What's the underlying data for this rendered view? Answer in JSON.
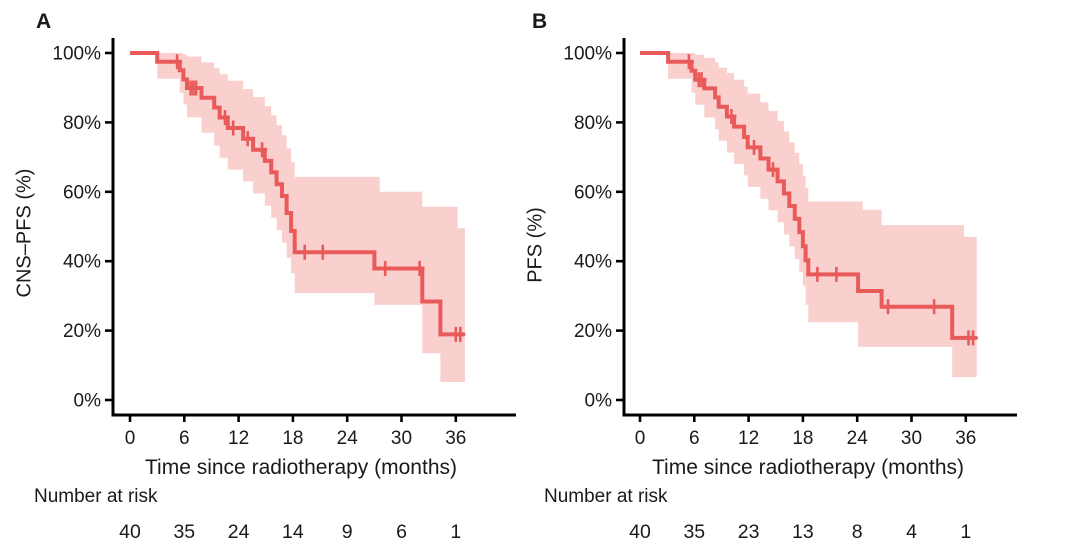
{
  "page": {
    "background": "#ffffff"
  },
  "chart_data": [
    {
      "type": "line",
      "subtype": "kaplan-meier-step-curve-with-confidence-band",
      "panel": "A",
      "ylabel": "CNS–PFS (%)",
      "xlabel": "Time since radiotherapy (months)",
      "risk_label": "Number at risk",
      "x_ticks": [
        0,
        6,
        12,
        18,
        24,
        30,
        36
      ],
      "y_ticks": [
        {
          "value": 100,
          "label": "100%"
        },
        {
          "value": 80,
          "label": "80%"
        },
        {
          "value": 60,
          "label": "60%"
        },
        {
          "value": 40,
          "label": "40%"
        },
        {
          "value": 20,
          "label": "20%"
        },
        {
          "value": 0,
          "label": "0%"
        }
      ],
      "xlim": [
        0,
        39
      ],
      "ylim": [
        0,
        100
      ],
      "grid": false,
      "legend": "none",
      "line_color": "#e95a5a",
      "band_color": "#fad0ce",
      "curve_start": [
        0,
        100
      ],
      "curve_end_time": 37.0,
      "survival_steps": [
        [
          3.0,
          97.5
        ],
        [
          5.5,
          95.0
        ],
        [
          5.9,
          92.4
        ],
        [
          6.3,
          89.9
        ],
        [
          7.9,
          87.1
        ],
        [
          9.3,
          84.3
        ],
        [
          9.9,
          81.4
        ],
        [
          10.8,
          78.4
        ],
        [
          12.5,
          75.3
        ],
        [
          13.6,
          72.1
        ],
        [
          14.9,
          68.9
        ],
        [
          15.6,
          65.6
        ],
        [
          16.2,
          62.2
        ],
        [
          16.8,
          58.8
        ],
        [
          17.3,
          53.9
        ],
        [
          17.8,
          48.7
        ],
        [
          18.2,
          42.6
        ],
        [
          27.0,
          37.9
        ],
        [
          32.3,
          28.4
        ],
        [
          34.3,
          18.9
        ]
      ],
      "censor_marks": [
        [
          5.2,
          97.5
        ],
        [
          6.7,
          89.9
        ],
        [
          7.0,
          89.9
        ],
        [
          7.3,
          89.9
        ],
        [
          10.5,
          81.4
        ],
        [
          11.4,
          78.4
        ],
        [
          13.0,
          75.3
        ],
        [
          14.6,
          72.1
        ],
        [
          19.3,
          42.6
        ],
        [
          21.3,
          42.6
        ],
        [
          28.2,
          37.9
        ],
        [
          32.0,
          37.9
        ],
        [
          36.0,
          18.9
        ],
        [
          36.5,
          18.9
        ]
      ],
      "band_upper": [
        [
          3.0,
          100
        ],
        [
          5.9,
          99.6
        ],
        [
          6.3,
          99.0
        ],
        [
          7.9,
          97.3
        ],
        [
          9.3,
          95.6
        ],
        [
          9.9,
          93.9
        ],
        [
          10.8,
          92.0
        ],
        [
          12.5,
          89.6
        ],
        [
          13.6,
          87.3
        ],
        [
          14.9,
          84.7
        ],
        [
          15.6,
          82.0
        ],
        [
          16.2,
          79.2
        ],
        [
          16.8,
          76.3
        ],
        [
          17.3,
          72.5
        ],
        [
          17.8,
          68.5
        ],
        [
          18.2,
          64.3
        ],
        [
          27.6,
          60.0
        ],
        [
          32.3,
          55.7
        ],
        [
          36.2,
          49.5
        ]
      ],
      "band_lower": [
        [
          3.0,
          92.6
        ],
        [
          5.5,
          88.5
        ],
        [
          5.9,
          85.2
        ],
        [
          6.3,
          81.5
        ],
        [
          7.9,
          77.0
        ],
        [
          9.3,
          73.3
        ],
        [
          9.9,
          69.8
        ],
        [
          10.8,
          66.4
        ],
        [
          12.5,
          63.0
        ],
        [
          13.6,
          59.5
        ],
        [
          14.9,
          56.0
        ],
        [
          15.6,
          52.5
        ],
        [
          16.2,
          49.0
        ],
        [
          16.8,
          45.4
        ],
        [
          17.3,
          41.0
        ],
        [
          17.8,
          36.5
        ],
        [
          18.2,
          30.8
        ],
        [
          27.0,
          27.4
        ],
        [
          32.3,
          13.5
        ],
        [
          34.3,
          5.2
        ]
      ],
      "risk_counts": [
        40,
        35,
        24,
        14,
        9,
        6,
        1
      ]
    },
    {
      "type": "line",
      "subtype": "kaplan-meier-step-curve-with-confidence-band",
      "panel": "B",
      "ylabel": "PFS (%)",
      "xlabel": "Time since radiotherapy (months)",
      "risk_label": "Number at risk",
      "x_ticks": [
        0,
        6,
        12,
        18,
        24,
        30,
        36
      ],
      "y_ticks": [
        {
          "value": 100,
          "label": "100%"
        },
        {
          "value": 80,
          "label": "80%"
        },
        {
          "value": 60,
          "label": "60%"
        },
        {
          "value": 40,
          "label": "40%"
        },
        {
          "value": 20,
          "label": "20%"
        },
        {
          "value": 0,
          "label": "0%"
        }
      ],
      "xlim": [
        0,
        39
      ],
      "ylim": [
        0,
        100
      ],
      "grid": false,
      "legend": "none",
      "line_color": "#e95a5a",
      "band_color": "#fad0ce",
      "curve_start": [
        0,
        100
      ],
      "curve_end_time": 37.2,
      "survival_steps": [
        [
          3.1,
          97.5
        ],
        [
          5.7,
          94.9
        ],
        [
          6.1,
          92.3
        ],
        [
          7.1,
          89.8
        ],
        [
          8.3,
          87.2
        ],
        [
          8.7,
          84.5
        ],
        [
          9.6,
          81.7
        ],
        [
          10.4,
          78.8
        ],
        [
          11.5,
          75.8
        ],
        [
          11.9,
          72.8
        ],
        [
          13.3,
          69.6
        ],
        [
          14.2,
          66.4
        ],
        [
          15.2,
          63.0
        ],
        [
          15.9,
          59.5
        ],
        [
          16.5,
          55.9
        ],
        [
          17.1,
          52.2
        ],
        [
          17.6,
          48.4
        ],
        [
          18.0,
          44.3
        ],
        [
          18.3,
          40.3
        ],
        [
          18.6,
          36.2
        ],
        [
          24.1,
          31.4
        ],
        [
          26.7,
          26.9
        ],
        [
          34.5,
          17.9
        ]
      ],
      "censor_marks": [
        [
          5.4,
          97.5
        ],
        [
          6.5,
          92.3
        ],
        [
          6.8,
          92.3
        ],
        [
          10.1,
          81.7
        ],
        [
          12.6,
          72.8
        ],
        [
          14.7,
          66.4
        ],
        [
          19.6,
          36.2
        ],
        [
          21.7,
          36.2
        ],
        [
          27.4,
          26.9
        ],
        [
          32.5,
          26.9
        ],
        [
          36.3,
          17.9
        ],
        [
          36.8,
          17.9
        ]
      ],
      "band_upper": [
        [
          3.1,
          100
        ],
        [
          6.1,
          99.5
        ],
        [
          7.1,
          98.6
        ],
        [
          8.3,
          97.3
        ],
        [
          8.7,
          95.8
        ],
        [
          9.6,
          94.2
        ],
        [
          10.4,
          92.3
        ],
        [
          11.5,
          90.3
        ],
        [
          11.9,
          88.3
        ],
        [
          13.3,
          85.8
        ],
        [
          14.2,
          83.3
        ],
        [
          15.2,
          80.4
        ],
        [
          15.9,
          77.4
        ],
        [
          16.5,
          74.3
        ],
        [
          17.1,
          71.2
        ],
        [
          17.6,
          68.0
        ],
        [
          18.0,
          64.6
        ],
        [
          18.3,
          61.2
        ],
        [
          18.6,
          57.2
        ],
        [
          24.6,
          54.8
        ],
        [
          26.7,
          50.4
        ],
        [
          35.8,
          47.0
        ]
      ],
      "band_lower": [
        [
          3.1,
          92.6
        ],
        [
          5.7,
          88.5
        ],
        [
          6.1,
          85.1
        ],
        [
          7.1,
          81.4
        ],
        [
          8.3,
          78.0
        ],
        [
          8.7,
          74.7
        ],
        [
          9.6,
          71.3
        ],
        [
          10.4,
          68.0
        ],
        [
          11.5,
          64.7
        ],
        [
          11.9,
          61.4
        ],
        [
          13.3,
          58.0
        ],
        [
          14.2,
          54.7
        ],
        [
          15.2,
          51.2
        ],
        [
          15.9,
          47.7
        ],
        [
          16.5,
          44.2
        ],
        [
          17.1,
          40.6
        ],
        [
          17.6,
          36.9
        ],
        [
          18.0,
          32.9
        ],
        [
          18.3,
          27.5
        ],
        [
          18.6,
          22.4
        ],
        [
          24.1,
          15.3
        ],
        [
          34.5,
          6.6
        ]
      ],
      "risk_counts": [
        40,
        35,
        23,
        13,
        8,
        4,
        1
      ]
    }
  ]
}
